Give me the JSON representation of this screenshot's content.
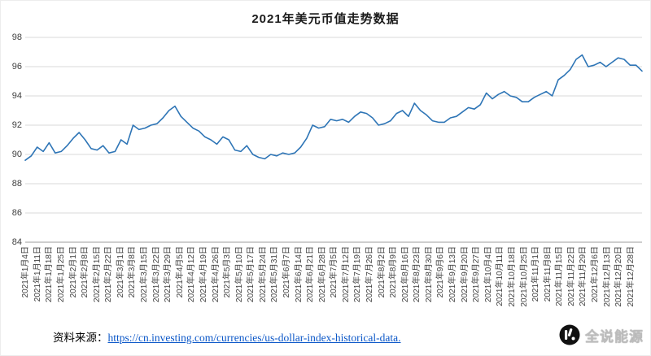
{
  "page": {
    "title": "2021年美元币值走势数据",
    "source_label": "资料来源：",
    "source_url": "https://cn.investing.com/currencies/us-dollar-index-historical-data.",
    "logo_text": "全说能源"
  },
  "chart_data": {
    "type": "line",
    "title": "2021年美元币值走势数据",
    "ylim": [
      84,
      98
    ],
    "y_ticks": [
      84,
      86,
      88,
      90,
      92,
      94,
      96,
      98
    ],
    "grid": "horizontal",
    "legend_position": "none",
    "line_color": "#2e75b6",
    "x_tick_labels": [
      "2021年1月4日",
      "2021年1月11日",
      "2021年1月18日",
      "2021年1月25日",
      "2021年2月1日",
      "2021年2月8日",
      "2021年2月15日",
      "2021年2月22日",
      "2021年3月1日",
      "2021年3月8日",
      "2021年3月15日",
      "2021年3月22日",
      "2021年3月29日",
      "2021年4月5日",
      "2021年4月12日",
      "2021年4月19日",
      "2021年4月26日",
      "2021年5月3日",
      "2021年5月10日",
      "2021年5月17日",
      "2021年5月24日",
      "2021年5月31日",
      "2021年6月7日",
      "2021年6月14日",
      "2021年6月21日",
      "2021年6月28日",
      "2021年7月5日",
      "2021年7月12日",
      "2021年7月19日",
      "2021年7月26日",
      "2021年8月2日",
      "2021年8月9日",
      "2021年8月16日",
      "2021年8月23日",
      "2021年8月30日",
      "2021年9月6日",
      "2021年9月13日",
      "2021年9月20日",
      "2021年9月27日",
      "2021年10月4日",
      "2021年10月11日",
      "2021年10月18日",
      "2021年10月25日",
      "2021年11月1日",
      "2021年11月8日",
      "2021年11月15日",
      "2021年11月22日",
      "2021年11月29日",
      "2021年12月6日",
      "2021年12月13日",
      "2021年12月20日",
      "2021年12月28日"
    ],
    "values": [
      89.6,
      89.9,
      90.5,
      90.2,
      90.8,
      90.1,
      90.2,
      90.6,
      91.1,
      91.5,
      91.0,
      90.4,
      90.3,
      90.6,
      90.1,
      90.2,
      91.0,
      90.7,
      92.0,
      91.7,
      91.8,
      92.0,
      92.1,
      92.5,
      93.0,
      93.3,
      92.6,
      92.2,
      91.8,
      91.6,
      91.2,
      91.0,
      90.7,
      91.2,
      91.0,
      90.3,
      90.2,
      90.6,
      90.0,
      89.8,
      89.7,
      90.0,
      89.9,
      90.1,
      90.0,
      90.1,
      90.5,
      91.1,
      92.0,
      91.8,
      91.9,
      92.4,
      92.3,
      92.4,
      92.2,
      92.6,
      92.9,
      92.8,
      92.5,
      92.0,
      92.1,
      92.3,
      92.8,
      93.0,
      92.6,
      93.5,
      93.0,
      92.7,
      92.3,
      92.2,
      92.2,
      92.5,
      92.6,
      92.9,
      93.2,
      93.1,
      93.4,
      94.2,
      93.8,
      94.1,
      94.3,
      94.0,
      93.9,
      93.6,
      93.6,
      93.9,
      94.1,
      94.3,
      94.0,
      95.1,
      95.4,
      95.8,
      96.5,
      96.8,
      96.0,
      96.1,
      96.3,
      96.0,
      96.3,
      96.6,
      96.5,
      96.1,
      96.1,
      95.7
    ]
  }
}
